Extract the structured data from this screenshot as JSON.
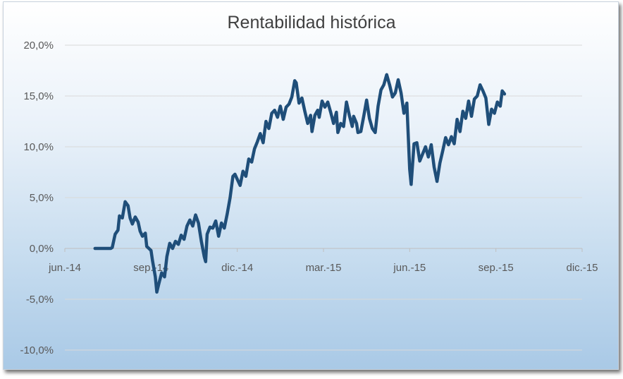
{
  "chart_data": {
    "type": "line",
    "title": "Rentabilidad histórica",
    "xlabel": "",
    "ylabel": "",
    "y_tick_labels": [
      "20,0%",
      "15,0%",
      "10,0%",
      "5,0%",
      "0,0%",
      "-5,0%",
      "-10,0%"
    ],
    "y_ticks": [
      20,
      15,
      10,
      5,
      0,
      -5,
      -10
    ],
    "ylim": [
      -10,
      20
    ],
    "x_tick_labels": [
      "jun.-14",
      "sep.-14",
      "dic.-14",
      "mar.-15",
      "jun.-15",
      "sep.-15",
      "dic.-15"
    ],
    "x_ticks": [
      0,
      3,
      6,
      9,
      12,
      15,
      18
    ],
    "xlim": [
      0,
      18
    ],
    "x_unit": "months since jun.-14",
    "grid": "horizontal",
    "legend": "none",
    "colors": {
      "line": "#1f4e79",
      "gridline": "#d9d9d9",
      "axis": "#bfbfbf",
      "title": "#404040",
      "tick_text": "#595959"
    },
    "series": [
      {
        "values": [
          [
            1.05,
            0.0
          ],
          [
            1.6,
            0.0
          ],
          [
            1.65,
            0.1
          ],
          [
            1.75,
            1.4
          ],
          [
            1.85,
            1.8
          ],
          [
            1.9,
            3.2
          ],
          [
            2.0,
            3.0
          ],
          [
            2.1,
            4.6
          ],
          [
            2.2,
            4.2
          ],
          [
            2.27,
            3.0
          ],
          [
            2.35,
            2.4
          ],
          [
            2.45,
            3.1
          ],
          [
            2.55,
            2.6
          ],
          [
            2.62,
            1.7
          ],
          [
            2.7,
            1.2
          ],
          [
            2.8,
            1.5
          ],
          [
            2.85,
            0.2
          ],
          [
            3.0,
            -0.2
          ],
          [
            3.05,
            -1.2
          ],
          [
            3.15,
            -2.8
          ],
          [
            3.2,
            -4.3
          ],
          [
            3.27,
            -3.5
          ],
          [
            3.37,
            -2.4
          ],
          [
            3.47,
            -2.8
          ],
          [
            3.55,
            -0.8
          ],
          [
            3.65,
            0.5
          ],
          [
            3.75,
            0.0
          ],
          [
            3.85,
            0.7
          ],
          [
            3.95,
            0.4
          ],
          [
            4.05,
            1.3
          ],
          [
            4.15,
            0.9
          ],
          [
            4.25,
            2.2
          ],
          [
            4.35,
            2.8
          ],
          [
            4.45,
            2.2
          ],
          [
            4.55,
            3.3
          ],
          [
            4.65,
            2.5
          ],
          [
            4.75,
            0.7
          ],
          [
            4.85,
            -0.8
          ],
          [
            4.9,
            -1.3
          ],
          [
            4.95,
            1.4
          ],
          [
            5.05,
            2.1
          ],
          [
            5.15,
            2.0
          ],
          [
            5.25,
            2.7
          ],
          [
            5.35,
            1.2
          ],
          [
            5.45,
            2.5
          ],
          [
            5.55,
            2.0
          ],
          [
            5.65,
            3.4
          ],
          [
            5.75,
            5.0
          ],
          [
            5.85,
            7.1
          ],
          [
            5.92,
            7.3
          ],
          [
            6.0,
            6.8
          ],
          [
            6.1,
            6.2
          ],
          [
            6.2,
            7.6
          ],
          [
            6.3,
            7.1
          ],
          [
            6.4,
            8.8
          ],
          [
            6.5,
            8.5
          ],
          [
            6.6,
            9.8
          ],
          [
            6.7,
            10.5
          ],
          [
            6.8,
            11.3
          ],
          [
            6.9,
            10.4
          ],
          [
            7.0,
            12.5
          ],
          [
            7.1,
            11.8
          ],
          [
            7.2,
            13.3
          ],
          [
            7.3,
            13.6
          ],
          [
            7.4,
            12.9
          ],
          [
            7.5,
            14.0
          ],
          [
            7.6,
            12.7
          ],
          [
            7.7,
            13.9
          ],
          [
            7.8,
            14.2
          ],
          [
            7.9,
            14.9
          ],
          [
            8.0,
            16.5
          ],
          [
            8.05,
            16.3
          ],
          [
            8.15,
            14.3
          ],
          [
            8.25,
            14.8
          ],
          [
            8.35,
            13.5
          ],
          [
            8.45,
            12.3
          ],
          [
            8.55,
            13.1
          ],
          [
            8.6,
            11.5
          ],
          [
            8.7,
            13.1
          ],
          [
            8.8,
            13.6
          ],
          [
            8.85,
            12.9
          ],
          [
            8.95,
            14.5
          ],
          [
            9.05,
            13.9
          ],
          [
            9.15,
            14.4
          ],
          [
            9.25,
            13.4
          ],
          [
            9.35,
            12.3
          ],
          [
            9.45,
            13.4
          ],
          [
            9.5,
            11.4
          ],
          [
            9.6,
            12.3
          ],
          [
            9.7,
            12.0
          ],
          [
            9.8,
            14.4
          ],
          [
            9.9,
            13.1
          ],
          [
            10.0,
            12.0
          ],
          [
            10.05,
            13.0
          ],
          [
            10.15,
            12.3
          ],
          [
            10.2,
            11.4
          ],
          [
            10.3,
            11.5
          ],
          [
            10.4,
            13.0
          ],
          [
            10.5,
            14.6
          ],
          [
            10.6,
            12.8
          ],
          [
            10.7,
            11.8
          ],
          [
            10.8,
            11.4
          ],
          [
            10.9,
            14.0
          ],
          [
            11.0,
            15.6
          ],
          [
            11.1,
            16.1
          ],
          [
            11.2,
            17.1
          ],
          [
            11.3,
            16.1
          ],
          [
            11.4,
            14.9
          ],
          [
            11.5,
            15.3
          ],
          [
            11.6,
            16.6
          ],
          [
            11.7,
            15.3
          ],
          [
            11.8,
            13.3
          ],
          [
            11.9,
            14.3
          ],
          [
            12.0,
            7.8
          ],
          [
            12.05,
            6.3
          ],
          [
            12.15,
            10.3
          ],
          [
            12.25,
            10.4
          ],
          [
            12.35,
            8.6
          ],
          [
            12.45,
            9.3
          ],
          [
            12.55,
            10.0
          ],
          [
            12.65,
            9.0
          ],
          [
            12.75,
            10.2
          ],
          [
            12.85,
            8.0
          ],
          [
            12.95,
            6.6
          ],
          [
            13.05,
            8.4
          ],
          [
            13.15,
            9.6
          ],
          [
            13.25,
            10.9
          ],
          [
            13.35,
            10.2
          ],
          [
            13.45,
            11.0
          ],
          [
            13.55,
            10.3
          ],
          [
            13.65,
            12.7
          ],
          [
            13.75,
            11.5
          ],
          [
            13.85,
            13.5
          ],
          [
            13.95,
            12.8
          ],
          [
            14.05,
            14.5
          ],
          [
            14.15,
            13.0
          ],
          [
            14.25,
            14.7
          ],
          [
            14.35,
            15.0
          ],
          [
            14.45,
            16.1
          ],
          [
            14.55,
            15.5
          ],
          [
            14.65,
            14.8
          ],
          [
            14.75,
            12.2
          ],
          [
            14.85,
            13.7
          ],
          [
            14.95,
            13.3
          ],
          [
            15.05,
            14.4
          ],
          [
            15.15,
            14.0
          ],
          [
            15.22,
            15.5
          ],
          [
            15.3,
            15.2
          ]
        ]
      }
    ]
  }
}
